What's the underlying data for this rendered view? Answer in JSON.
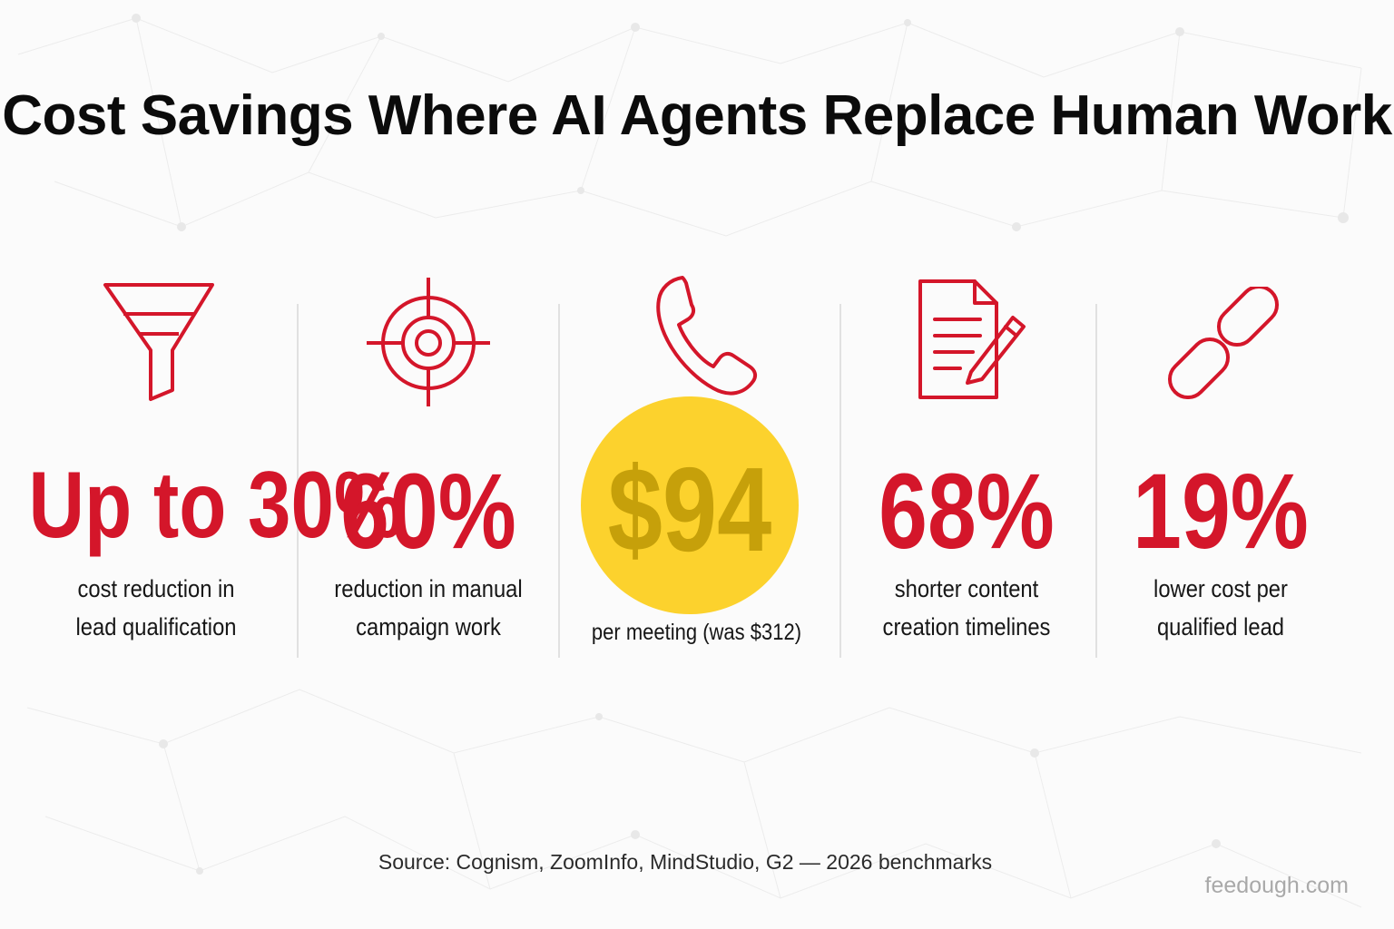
{
  "title": "Cost Savings Where AI Agents Replace Human Work",
  "accent_color": "#d4162a",
  "highlight_color": "#fcd22d",
  "stats": [
    {
      "icon": "funnel-icon",
      "value": "Up to 30%",
      "desc_line1": "cost reduction in",
      "desc_line2": "lead qualification"
    },
    {
      "icon": "target-icon",
      "value": "60%",
      "desc_line1": "reduction in manual",
      "desc_line2": "campaign work"
    },
    {
      "icon": "phone-icon",
      "value": "$94",
      "desc_line1": "per meeting (was $312)"
    },
    {
      "icon": "document-pencil-icon",
      "value": "68%",
      "desc_line1": "shorter content",
      "desc_line2": "creation timelines"
    },
    {
      "icon": "link-icon",
      "value": "19%",
      "desc_line1": "lower cost per",
      "desc_line2": "qualified lead"
    }
  ],
  "source": "Source: Cognism, ZoomInfo, MindStudio, G2 — 2026 benchmarks",
  "watermark": "feedough.com"
}
